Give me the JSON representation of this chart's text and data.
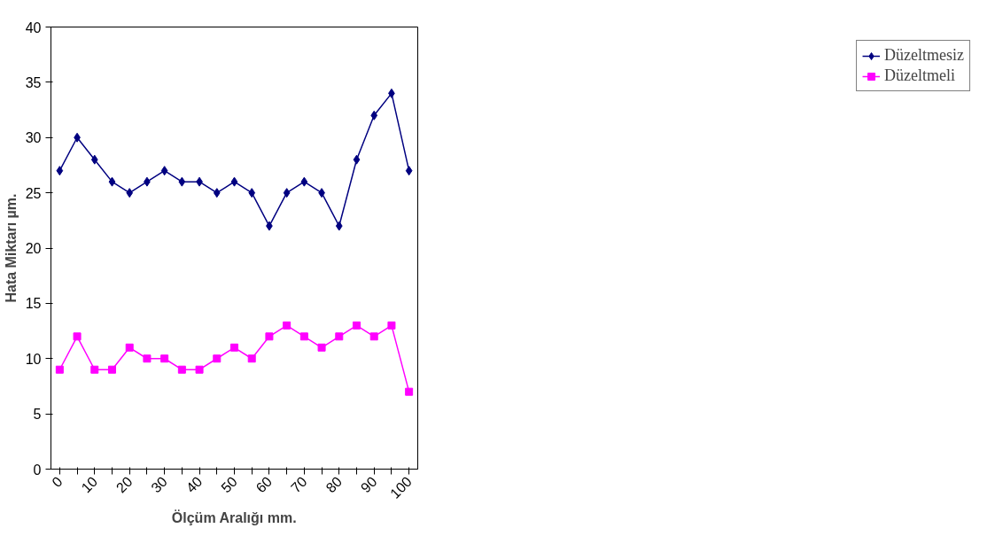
{
  "chart_data": {
    "type": "line",
    "xlabel": "Ölçüm Aralığı mm.",
    "ylabel": "Hata Miktarı µm.",
    "categories": [
      "0",
      null,
      "10",
      null,
      "20",
      null,
      "30",
      null,
      "40",
      null,
      "50",
      null,
      "60",
      null,
      "70",
      null,
      "80",
      null,
      "90",
      null,
      "100"
    ],
    "series": [
      {
        "name": "Düzeltmesiz",
        "color": "#000080",
        "marker": "diamond",
        "values": [
          27,
          30,
          28,
          26,
          25,
          26,
          27,
          26,
          26,
          25,
          26,
          25,
          22,
          25,
          26,
          25,
          22,
          28,
          32,
          34,
          27
        ]
      },
      {
        "name": "Düzeltmeli",
        "color": "#ff00ff",
        "marker": "square",
        "values": [
          9,
          12,
          9,
          9,
          11,
          10,
          10,
          9,
          9,
          10,
          11,
          10,
          12,
          13,
          12,
          11,
          12,
          13,
          12,
          13,
          7
        ]
      }
    ],
    "ylim": [
      0,
      40
    ],
    "yticks": [
      0,
      5,
      10,
      15,
      20,
      25,
      30,
      35,
      40
    ],
    "grid": false,
    "legend": "right"
  }
}
